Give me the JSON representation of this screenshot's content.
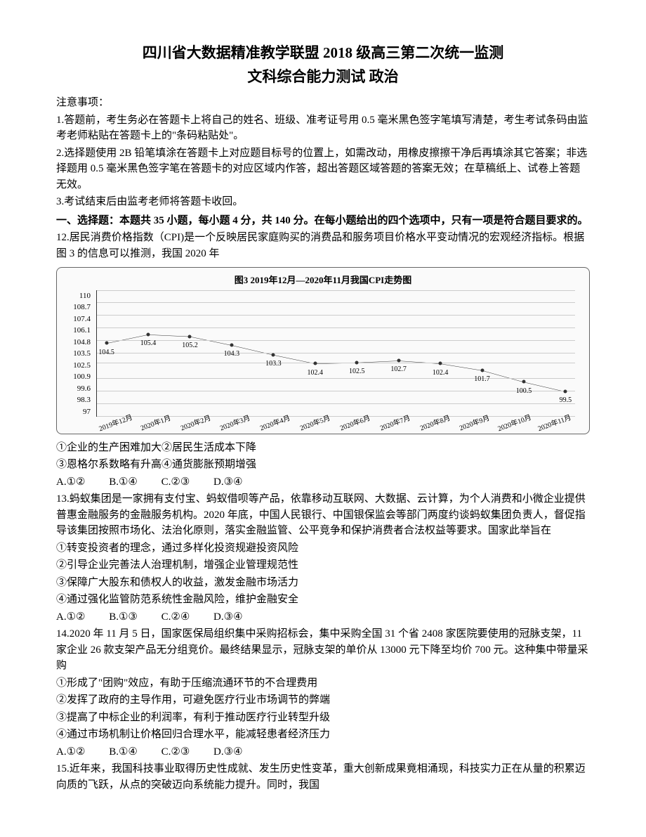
{
  "title": {
    "main": "四川省大数据精准教学联盟 2018 级高三第二次统一监测",
    "sub": "文科综合能力测试 政治"
  },
  "notice": {
    "label": "注意事项：",
    "items": [
      "1.答题前，考生务必在答题卡上将自己的姓名、班级、准考证号用 0.5 毫米黑色签字笔填写清楚，考生考试条码由监考老师粘贴在答题卡上的\"条码粘贴处\"。",
      "2.选择题使用 2B 铅笔填涂在答题卡上对应题目标号的位置上，如需改动，用橡皮擦擦干净后再填涂其它答案；非选择题用 0.5 毫米黑色签字笔在答题卡的对应区域内作答，超出答题区域答题的答案无效；在草稿纸上、试卷上答题无效。",
      "3.考试结束后由监考老师将答题卡收回。"
    ]
  },
  "section1": {
    "title": "一、选择题：本题共 35 小题，每小题 4 分，共 140 分。在每小题给出的四个选项中，只有一项是符合题目要求的。"
  },
  "q12": {
    "stem": "12.居民消费价格指数（CPI)是一个反映居民家庭购买的消费品和服务项目价格水平变动情况的宏观经济指标。根据图 3 的信息可以推测，我国 2020 年",
    "chart": {
      "title": "图3  2019年12月—2020年11月我国CPI走势图",
      "type": "line",
      "ylim": [
        97,
        110
      ],
      "yticks": [
        97,
        98.3,
        99.6,
        100.9,
        102.5,
        103.5,
        104.8,
        106.1,
        107.4,
        108.7,
        110
      ],
      "ytick_labels": [
        "97",
        "98.3",
        "99.6",
        "100.9",
        "102.5",
        "103.5",
        "104.8",
        "106.1",
        "107.4",
        "108.7",
        "110"
      ],
      "xlabels": [
        "2019年12月",
        "2020年1月",
        "2020年2月",
        "2020年3月",
        "2020年4月",
        "2020年5月",
        "2020年6月",
        "2020年7月",
        "2020年8月",
        "2020年9月",
        "2020年10月",
        "2020年11月"
      ],
      "values": [
        104.5,
        105.4,
        105.2,
        104.3,
        103.3,
        102.4,
        102.5,
        102.7,
        102.4,
        101.7,
        100.5,
        99.5
      ],
      "line_color": "#333333",
      "grid_color": "#cccccc",
      "background": "#fafafa",
      "font_size": 11
    },
    "statements": [
      "①企业的生产困难加大②居民生活成本下降",
      "③恩格尔系数略有升高④通货膨胀预期增强"
    ],
    "options": {
      "A": "A.①②",
      "B": "B.①④",
      "C": "C.②③",
      "D": "D.③④"
    }
  },
  "q13": {
    "stem": "13.蚂蚁集团是一家拥有支付宝、蚂蚁借呗等产品，依靠移动互联网、大数据、云计算，为个人消费和小微企业提供普惠金融服务的金融服务机构。2020 年底，中国人民银行、中国银保监会等部门两度约谈蚂蚁集团负责人，督促指导该集团按照市场化、法治化原则，落实金融监管、公平竞争和保护消费者合法权益等要求。国家此举旨在",
    "statements": [
      "①转变投资者的理念，通过多样化投资规避投资风险",
      "②引导企业完善法人治理机制，增强企业管理规范性",
      "③保障广大股东和债权人的收益，激发金融市场活力",
      "④通过强化监管防范系统性金融风险，维护金融安全"
    ],
    "options": {
      "A": "A.①②",
      "B": "B.①③",
      "C": "C.②④",
      "D": "D.③④"
    }
  },
  "q14": {
    "stem": "14.2020 年 11 月 5 日，国家医保局组织集中采购招标会，集中采购全国 31 个省 2408 家医院要使用的冠脉支架，11 家企业 26 款支架产品无分组竞价。最终结果显示，冠脉支架的单价从 13000 元下降至均价 700 元。这种集中带量采购",
    "statements": [
      "①形成了\"团购\"效应，有助于压缩流通环节的不合理费用",
      "②发挥了政府的主导作用，可避免医疗行业市场调节的弊端",
      "③提高了中标企业的利润率，有利于推动医疗行业转型升级",
      "④通过市场机制让价格回归合理水平，能减轻患者经济压力"
    ],
    "options": {
      "A": "A.①②",
      "B": "B.①④",
      "C": "C.②③",
      "D": "D.③④"
    }
  },
  "q15": {
    "stem": "15.近年来，我国科技事业取得历史性成就、发生历史性变革，重大创新成果竟相涌现，科技实力正在从量的积累迈向质的飞跃，从点的突破迈向系统能力提升。同时，我国"
  }
}
